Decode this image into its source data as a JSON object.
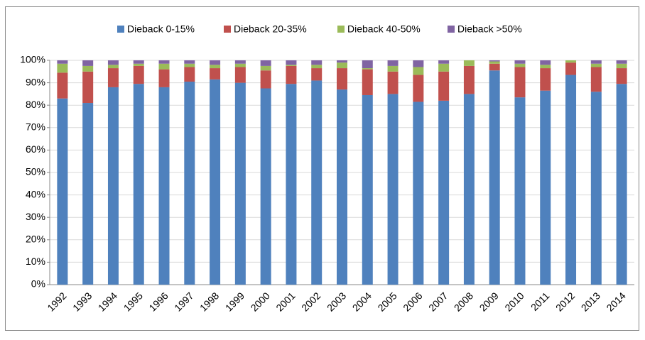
{
  "chart_data": {
    "type": "stacked_bar",
    "categories": [
      "1992",
      "1993",
      "1994",
      "1995",
      "1996",
      "1997",
      "1998",
      "1999",
      "2000",
      "2001",
      "2002",
      "2003",
      "2004",
      "2005",
      "2006",
      "2007",
      "2008",
      "2009",
      "2010",
      "2011",
      "2012",
      "2013",
      "2014"
    ],
    "series": [
      {
        "name": "Dieback 0-15%",
        "color": "#4f81bd",
        "values": [
          83,
          81,
          88,
          89.5,
          88,
          90.5,
          91.5,
          90,
          87.5,
          89.5,
          91,
          87,
          84.5,
          85,
          81.5,
          82,
          85,
          95.5,
          83.5,
          86.5,
          93.5,
          86,
          89.5
        ]
      },
      {
        "name": "Dieback 20-35%",
        "color": "#c0504d",
        "values": [
          11.5,
          14,
          8.5,
          8,
          8,
          6.5,
          5,
          7,
          8,
          8,
          5.5,
          9.5,
          11.5,
          10,
          12,
          13,
          12.5,
          3,
          13.5,
          10,
          5.5,
          11,
          7
        ]
      },
      {
        "name": "Dieback 40-50%",
        "color": "#9bbb59",
        "values": [
          4,
          2.5,
          1.5,
          1,
          2.5,
          1.5,
          1.5,
          1.5,
          2,
          0.5,
          1.5,
          2.5,
          0.5,
          2.5,
          3.5,
          3.5,
          2.5,
          1,
          1.5,
          1.5,
          1,
          1.5,
          2
        ]
      },
      {
        "name": "Dieback >50%",
        "color": "#8064a2",
        "values": [
          1.5,
          2.5,
          2,
          1.5,
          1.5,
          1.5,
          2,
          1.5,
          2.5,
          2,
          2,
          1,
          3.5,
          2.5,
          3,
          1.5,
          0,
          0.5,
          1.5,
          2,
          0,
          1.5,
          1.5
        ]
      }
    ],
    "ylim": [
      0,
      100
    ],
    "yticks": [
      {
        "value": 0,
        "label": "0%"
      },
      {
        "value": 10,
        "label": "10%"
      },
      {
        "value": 20,
        "label": "20%"
      },
      {
        "value": 30,
        "label": "30%"
      },
      {
        "value": 40,
        "label": "40%"
      },
      {
        "value": 50,
        "label": "50%"
      },
      {
        "value": 60,
        "label": "60%"
      },
      {
        "value": 70,
        "label": "70%"
      },
      {
        "value": 80,
        "label": "80%"
      },
      {
        "value": 90,
        "label": "90%"
      },
      {
        "value": 100,
        "label": "100%"
      }
    ],
    "grid": true,
    "legend": "top"
  }
}
